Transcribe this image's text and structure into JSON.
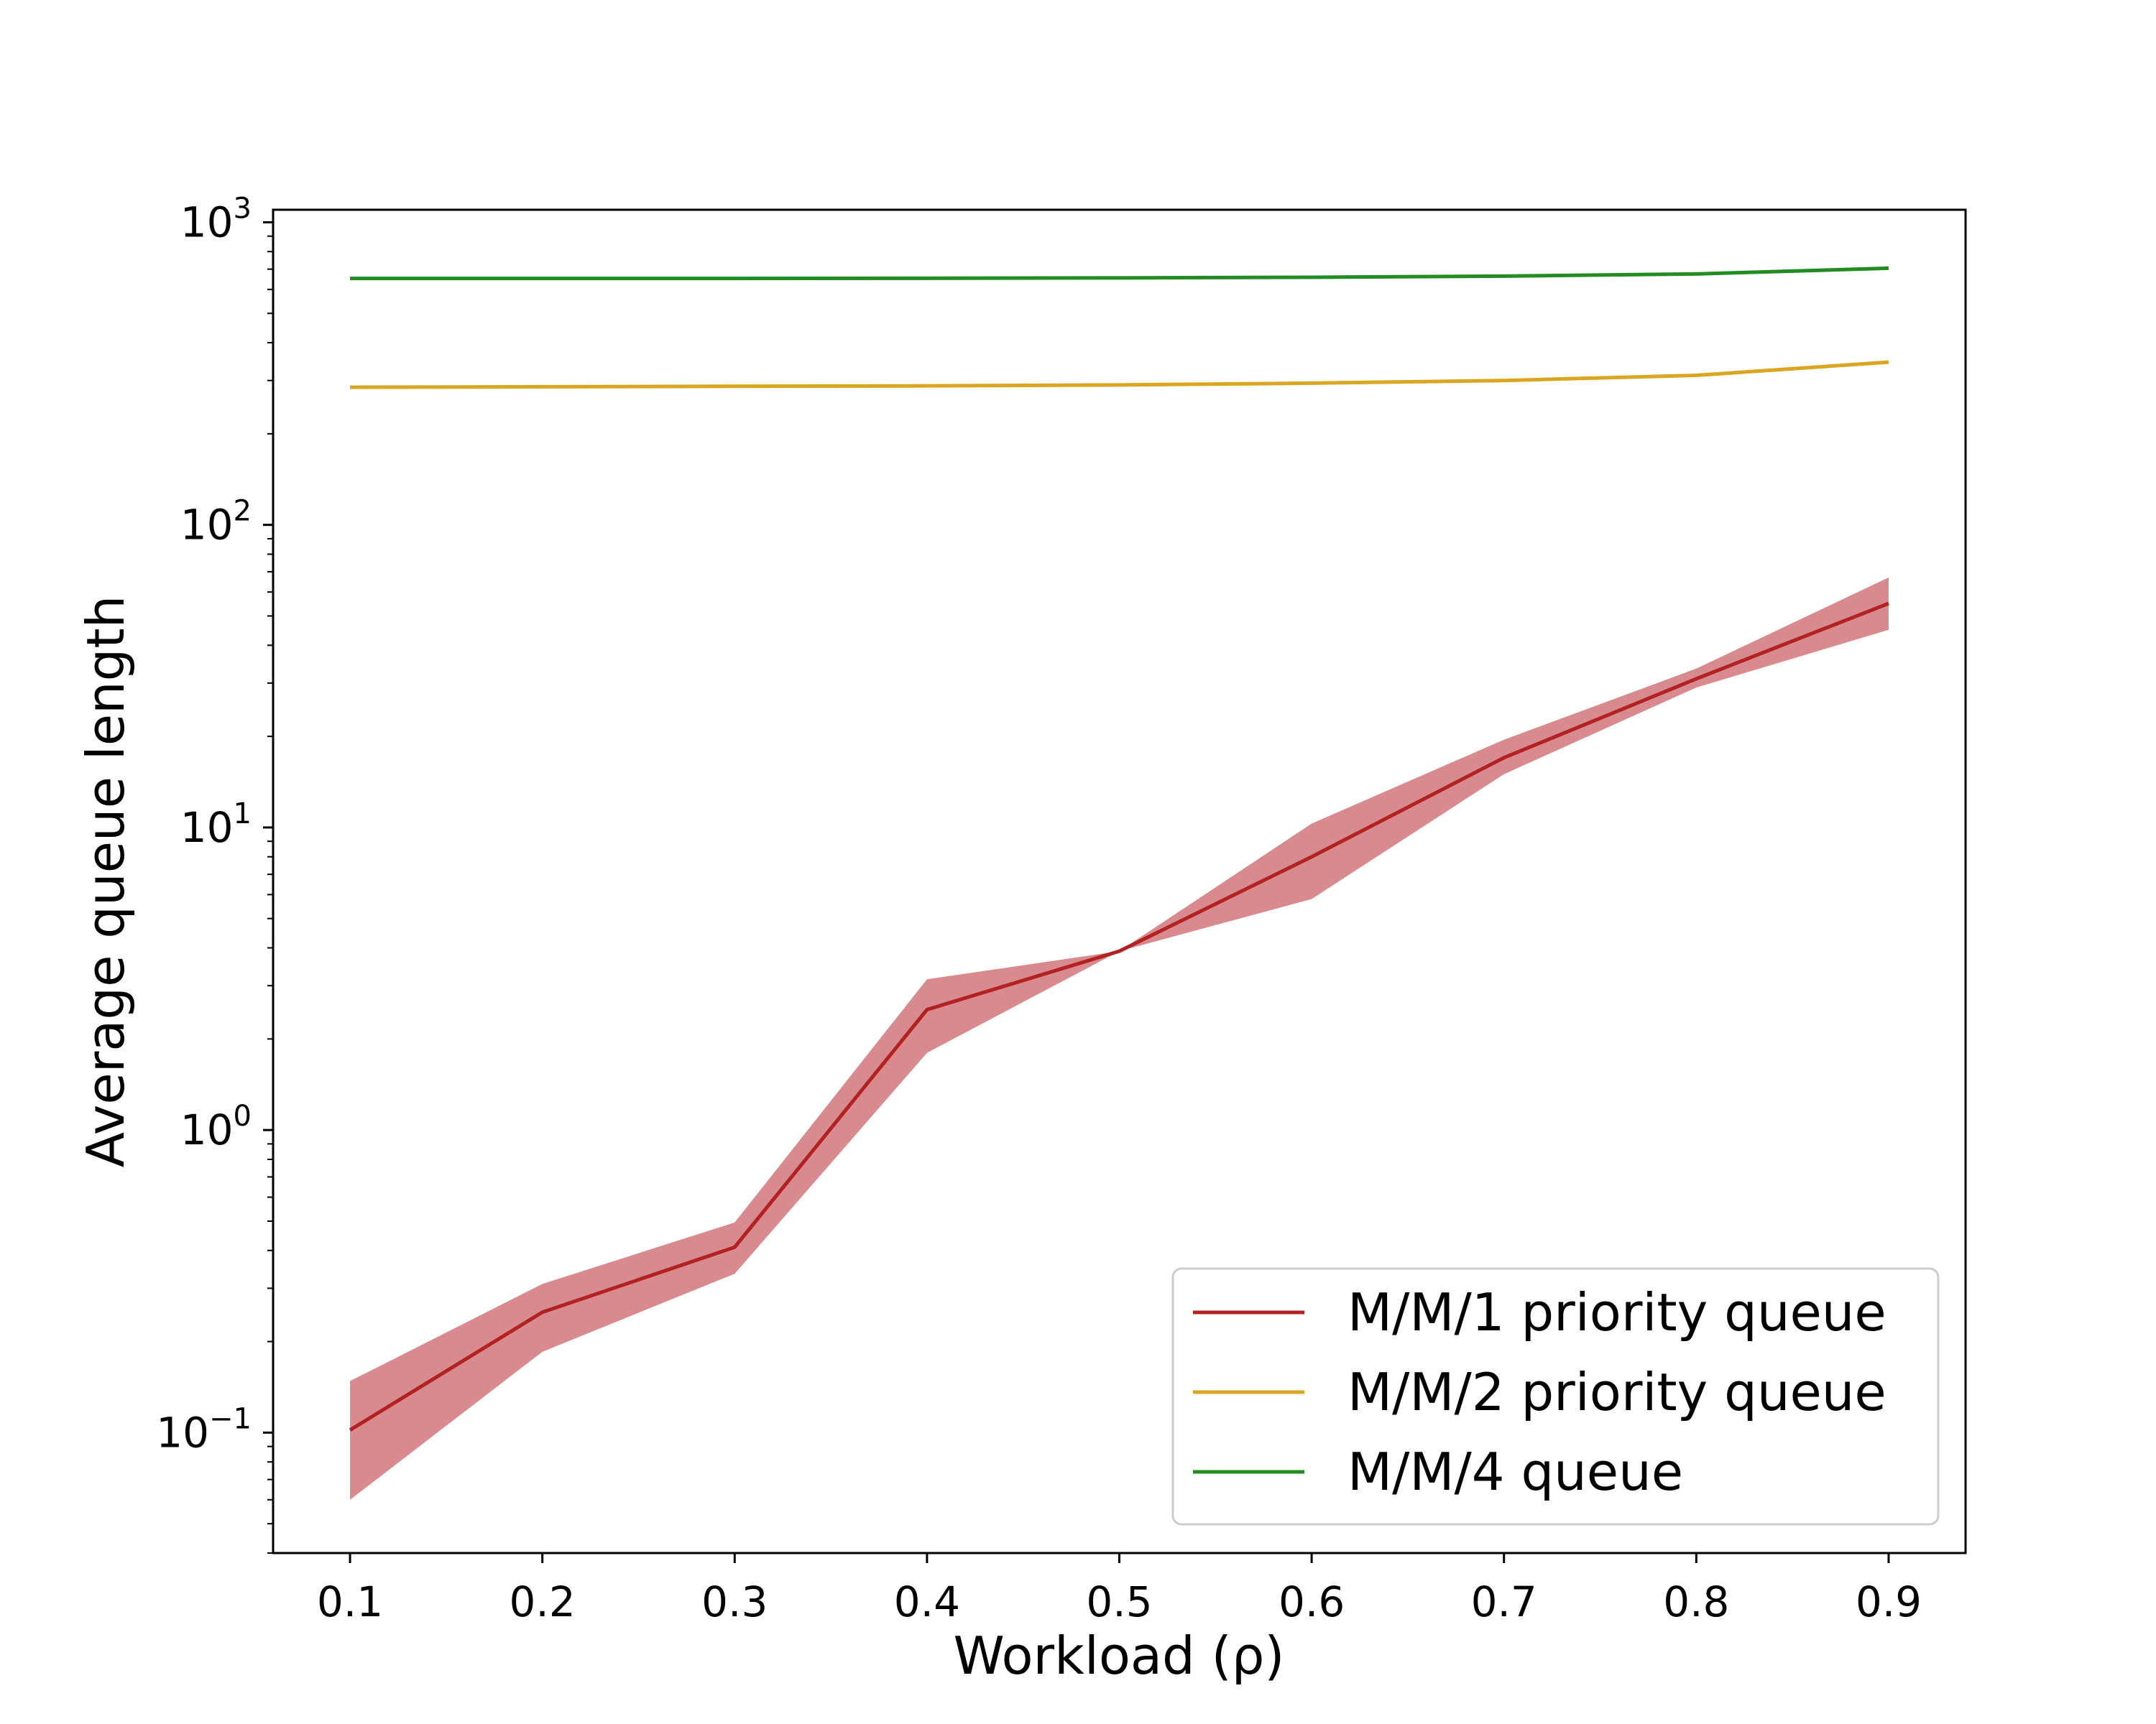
{
  "chart_data": {
    "type": "line",
    "title": "",
    "xlabel": "Workload (ρ)",
    "ylabel": "Average queue length",
    "yscale": "log",
    "xlim": [
      0.06,
      0.94
    ],
    "ylim": [
      0.04,
      1100
    ],
    "x": [
      0.1,
      0.2,
      0.3,
      0.4,
      0.5,
      0.6,
      0.7,
      0.8,
      0.9
    ],
    "xticks": [
      "0.1",
      "0.2",
      "0.3",
      "0.4",
      "0.5",
      "0.6",
      "0.7",
      "0.8",
      "0.9"
    ],
    "yticks": [
      {
        "value": 0.1,
        "base": "10",
        "exp": "−1"
      },
      {
        "value": 1,
        "base": "10",
        "exp": "0"
      },
      {
        "value": 10,
        "base": "10",
        "exp": "1"
      },
      {
        "value": 100,
        "base": "10",
        "exp": "2"
      },
      {
        "value": 1000,
        "base": "10",
        "exp": "3"
      }
    ],
    "grid": false,
    "legend_position": "lower-right",
    "series": [
      {
        "name": "M/M/1 priority queue",
        "color": "#b22222",
        "band_color": "#d98a8e",
        "values": [
          0.102,
          0.25,
          0.41,
          2.5,
          3.9,
          8.0,
          17.0,
          31.0,
          55.0
        ],
        "lower": [
          0.06,
          0.185,
          0.335,
          1.8,
          3.9,
          5.8,
          15.0,
          29.0,
          45.0
        ],
        "upper": [
          0.148,
          0.31,
          0.495,
          3.15,
          3.9,
          10.3,
          19.5,
          33.5,
          67.0
        ]
      },
      {
        "name": "M/M/2 priority queue",
        "color": "#daa520",
        "values": [
          285,
          286,
          287,
          288,
          290,
          294,
          300,
          312,
          345
        ]
      },
      {
        "name": "M/M/4 queue",
        "color": "#228b22",
        "values": [
          652,
          652,
          652,
          653,
          655,
          658,
          664,
          675,
          705
        ]
      }
    ]
  }
}
